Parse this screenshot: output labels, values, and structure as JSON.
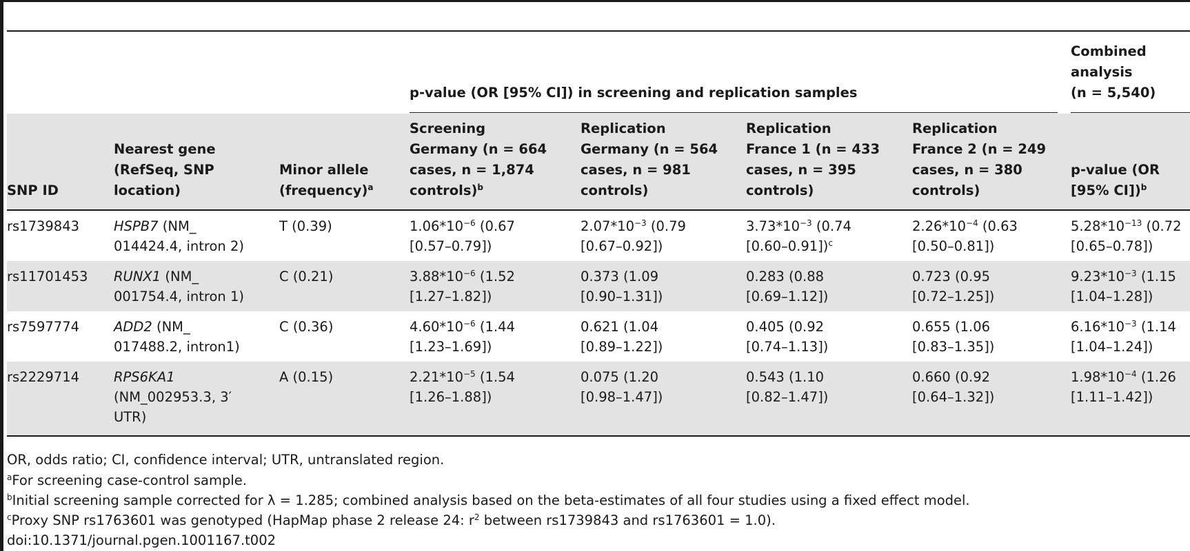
{
  "group_header": "p-value (OR [95% CI]) in screening and replication samples",
  "combined_header": {
    "line1": "Combined",
    "line2": "analysis",
    "line3": "(n = 5,540)"
  },
  "columns": {
    "snp": {
      "line1": "SNP ID"
    },
    "gene": {
      "line1": "Nearest gene",
      "line2": "(RefSeq, SNP",
      "line3": "location)"
    },
    "allele": {
      "line1": "Minor allele",
      "line2": "(frequency)",
      "sup": "a"
    },
    "screening": {
      "line1": "Screening",
      "line2": "Germany (n = 664",
      "line3": "cases, n = 1,874",
      "line4": "controls)",
      "sup": "b"
    },
    "rep_de": {
      "line1": "Replication",
      "line2": "Germany (n = 564",
      "line3": "cases, n = 981",
      "line4": "controls)"
    },
    "rep_fr1": {
      "line1": "Replication",
      "line2": "France 1 (n = 433",
      "line3": "cases, n = 395",
      "line4": "controls)"
    },
    "rep_fr2": {
      "line1": "Replication",
      "line2": "France 2 (n = 249",
      "line3": "cases, n = 380",
      "line4": "controls)"
    },
    "combined": {
      "line1": "p-value (OR",
      "line2": "[95% CI])",
      "sup": "b"
    }
  },
  "rows": [
    {
      "snp": "rs1739843",
      "gene_name": "HSPB7",
      "gene_rest": " (NM_",
      "gene_line2": "014424.4, intron 2)",
      "gene_line3": "",
      "allele": "T (0.39)",
      "screening": {
        "base": "1.06*10",
        "exp": "−6",
        "rest": " (0.67",
        "ci": "[0.57–0.79])"
      },
      "rep_de": {
        "base": "2.07*10",
        "exp": "−3",
        "rest": " (0.79",
        "ci": "[0.67–0.92])"
      },
      "rep_fr1": {
        "base": "3.73*10",
        "exp": "−3",
        "rest": " (0.74",
        "ci": "[0.60–0.91])",
        "ci_sup": "c"
      },
      "rep_fr2": {
        "base": "2.26*10",
        "exp": "−4",
        "rest": " (0.63",
        "ci": "[0.50–0.81])"
      },
      "combined": {
        "base": "5.28*10",
        "exp": "−13",
        "rest": " (0.72",
        "ci": "[0.65–0.78])"
      }
    },
    {
      "snp": "rs11701453",
      "gene_name": "RUNX1",
      "gene_rest": " (NM_",
      "gene_line2": "001754.4, intron 1)",
      "gene_line3": "",
      "allele": "C (0.21)",
      "screening": {
        "base": "3.88*10",
        "exp": "−6",
        "rest": " (1.52",
        "ci": "[1.27–1.82])"
      },
      "rep_de": {
        "base": "",
        "exp": "",
        "rest": "0.373 (1.09",
        "ci": "[0.90–1.31])"
      },
      "rep_fr1": {
        "base": "",
        "exp": "",
        "rest": "0.283 (0.88",
        "ci": "[0.69–1.12])",
        "ci_sup": ""
      },
      "rep_fr2": {
        "base": "",
        "exp": "",
        "rest": "0.723 (0.95",
        "ci": "[0.72–1.25])"
      },
      "combined": {
        "base": "9.23*10",
        "exp": "−3",
        "rest": " (1.15",
        "ci": "[1.04–1.28])"
      }
    },
    {
      "snp": "rs7597774",
      "gene_name": "ADD2",
      "gene_rest": " (NM_",
      "gene_line2": "017488.2, intron1)",
      "gene_line3": "",
      "allele": "C (0.36)",
      "screening": {
        "base": "4.60*10",
        "exp": "−6",
        "rest": " (1.44",
        "ci": "[1.23–1.69])"
      },
      "rep_de": {
        "base": "",
        "exp": "",
        "rest": "0.621 (1.04",
        "ci": "[0.89–1.22])"
      },
      "rep_fr1": {
        "base": "",
        "exp": "",
        "rest": "0.405 (0.92",
        "ci": "[0.74–1.13])",
        "ci_sup": ""
      },
      "rep_fr2": {
        "base": "",
        "exp": "",
        "rest": "0.655 (1.06",
        "ci": "[0.83–1.35])"
      },
      "combined": {
        "base": "6.16*10",
        "exp": "−3",
        "rest": " (1.14",
        "ci": "[1.04–1.24])"
      }
    },
    {
      "snp": "rs2229714",
      "gene_name": "RPS6KA1",
      "gene_rest": "",
      "gene_line2": "(NM_002953.3, 3′",
      "gene_line3": "UTR)",
      "allele": "A (0.15)",
      "screening": {
        "base": "2.21*10",
        "exp": "−5",
        "rest": " (1.54",
        "ci": "[1.26–1.88])"
      },
      "rep_de": {
        "base": "",
        "exp": "",
        "rest": "0.075 (1.20",
        "ci": "[0.98–1.47])"
      },
      "rep_fr1": {
        "base": "",
        "exp": "",
        "rest": "0.543 (1.10",
        "ci": "[0.82–1.47])",
        "ci_sup": ""
      },
      "rep_fr2": {
        "base": "",
        "exp": "",
        "rest": "0.660 (0.92",
        "ci": "[0.64–1.32])"
      },
      "combined": {
        "base": "1.98*10",
        "exp": "−4",
        "rest": " (1.26",
        "ci": "[1.11–1.42])"
      }
    }
  ],
  "footnotes": {
    "abbrev": "OR, odds ratio; CI, confidence interval; UTR, untranslated region.",
    "a": {
      "mark": "a",
      "text": "For screening case-control sample."
    },
    "b": {
      "mark": "b",
      "text": "Initial screening sample corrected for λ = 1.285; combined analysis based on the beta-estimates of all four studies using a fixed effect model."
    },
    "c": {
      "mark": "c",
      "text1": "Proxy SNP rs1763601 was genotyped (HapMap phase 2 release 24: r",
      "text_sup": "2",
      "text2": " between rs1739843 and rs1763601 = 1.0)."
    },
    "doi": "doi:10.1371/journal.pgen.1001167.t002"
  }
}
